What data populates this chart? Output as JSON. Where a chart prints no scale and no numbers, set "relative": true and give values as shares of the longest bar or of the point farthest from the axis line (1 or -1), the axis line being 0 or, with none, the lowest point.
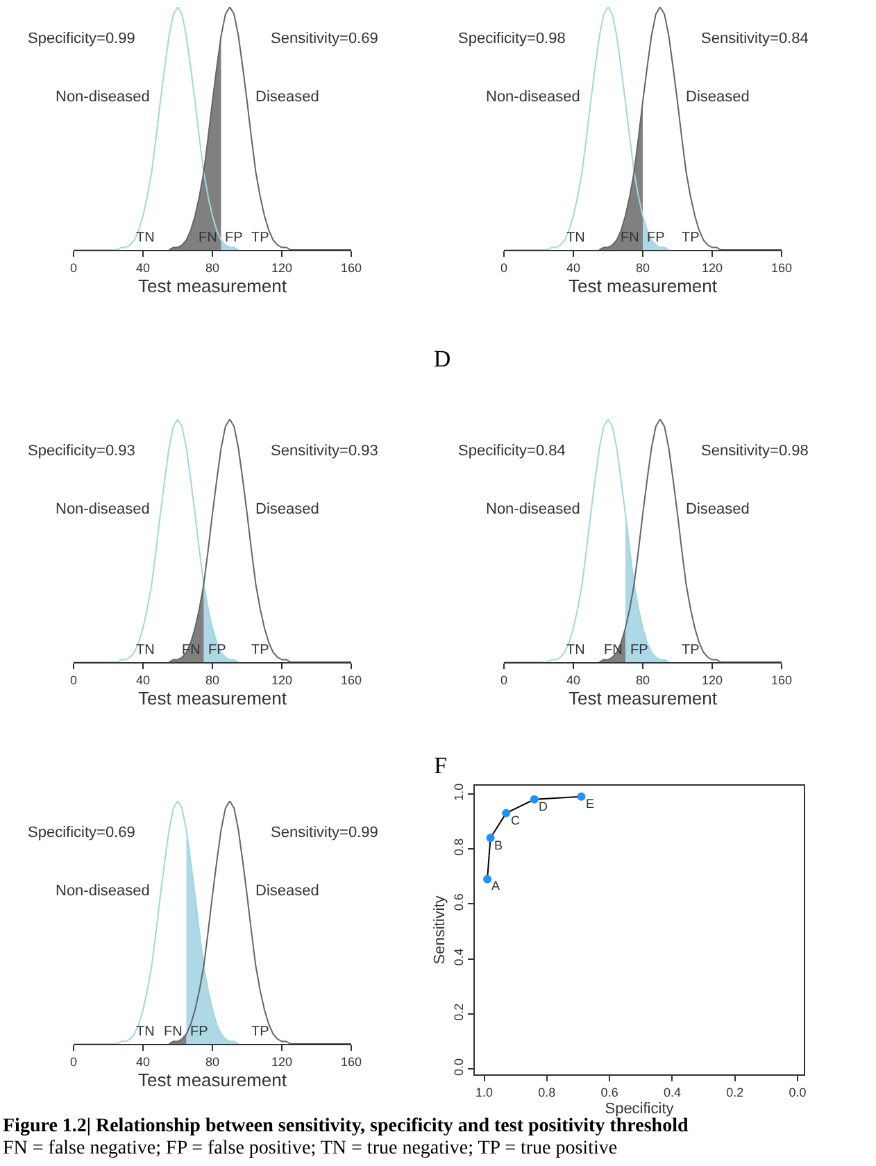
{
  "chart_data": [
    {
      "type": "line",
      "relative": true,
      "xlabel": "Test measurement",
      "xlim": [
        0,
        160
      ],
      "xticks": [
        0,
        40,
        80,
        120,
        160
      ],
      "x": [
        0,
        2.5,
        5,
        7.5,
        10,
        12.5,
        15,
        17.5,
        20,
        22.5,
        25,
        27.5,
        30,
        32.5,
        35,
        37.5,
        40,
        42.5,
        45,
        47.5,
        50,
        52.5,
        55,
        57.5,
        60,
        62.5,
        65,
        67.5,
        70,
        72.5,
        75,
        77.5,
        80,
        82.5,
        85,
        87.5,
        90,
        92.5,
        95,
        97.5,
        100,
        102.5,
        105,
        107.5,
        110,
        112.5,
        115,
        117.5,
        120,
        122.5,
        125,
        127.5,
        130,
        132.5,
        135,
        137.5,
        140,
        142.5,
        145,
        147.5,
        150,
        152.5,
        155,
        157.5,
        160
      ],
      "series": [
        {
          "name": "Non-diseased",
          "color": "#9fd8e0",
          "values": [
            0,
            0,
            0,
            0,
            0,
            0,
            0,
            0,
            0,
            0,
            0,
            0.01,
            0.01,
            0.02,
            0.04,
            0.08,
            0.14,
            0.22,
            0.32,
            0.46,
            0.61,
            0.75,
            0.88,
            0.97,
            1,
            0.97,
            0.88,
            0.75,
            0.61,
            0.46,
            0.32,
            0.22,
            0.14,
            0.08,
            0.04,
            0.02,
            0.01,
            0.01,
            0,
            null,
            null,
            null,
            null,
            null,
            null,
            null,
            null,
            null,
            null,
            null,
            null,
            null,
            null,
            null,
            null,
            null,
            null,
            null,
            null,
            null,
            null,
            null,
            null,
            null,
            null
          ]
        },
        {
          "name": "Diseased",
          "color": "#666666",
          "values": [
            null,
            null,
            null,
            null,
            null,
            null,
            null,
            null,
            null,
            null,
            null,
            null,
            null,
            null,
            null,
            null,
            null,
            null,
            null,
            null,
            null,
            null,
            0,
            0.01,
            0.01,
            0.02,
            0.04,
            0.08,
            0.14,
            0.22,
            0.32,
            0.46,
            0.61,
            0.75,
            0.88,
            0.97,
            1,
            0.97,
            0.88,
            0.75,
            0.61,
            0.46,
            0.32,
            0.22,
            0.14,
            0.08,
            0.04,
            0.02,
            0.01,
            0.01,
            0,
            0,
            0,
            0,
            0,
            0,
            0,
            0,
            0,
            0,
            0,
            0,
            0,
            0,
            0
          ]
        },
        {
          "type": "area",
          "name": "FP",
          "color": "#add8e6",
          "x": [
            85,
            87.5,
            90,
            92.5,
            95
          ],
          "values": [
            0.04,
            0.02,
            0.01,
            0.01,
            0
          ]
        },
        {
          "type": "area",
          "name": "FN",
          "color": "#808080",
          "x": [
            55,
            57.5,
            60,
            62.5,
            65,
            67.5,
            70,
            72.5,
            75,
            77.5,
            80,
            82.5,
            85
          ],
          "values": [
            0,
            0.01,
            0.01,
            0.02,
            0.04,
            0.08,
            0.14,
            0.22,
            0.32,
            0.46,
            0.61,
            0.75,
            0.88
          ]
        }
      ],
      "annotations": [
        "Specificity=0.99",
        "Sensitivity=0.69",
        "TN",
        "TP"
      ]
    },
    {
      "type": "line",
      "relative": true,
      "xlabel": "Test measurement",
      "xlim": [
        0,
        160
      ],
      "xticks": [
        0,
        40,
        80,
        120,
        160
      ],
      "x": [
        0,
        2.5,
        5,
        7.5,
        10,
        12.5,
        15,
        17.5,
        20,
        22.5,
        25,
        27.5,
        30,
        32.5,
        35,
        37.5,
        40,
        42.5,
        45,
        47.5,
        50,
        52.5,
        55,
        57.5,
        60,
        62.5,
        65,
        67.5,
        70,
        72.5,
        75,
        77.5,
        80,
        82.5,
        85,
        87.5,
        90,
        92.5,
        95,
        97.5,
        100,
        102.5,
        105,
        107.5,
        110,
        112.5,
        115,
        117.5,
        120,
        122.5,
        125,
        127.5,
        130,
        132.5,
        135,
        137.5,
        140,
        142.5,
        145,
        147.5,
        150,
        152.5,
        155,
        157.5,
        160
      ],
      "series": [
        {
          "name": "Non-diseased",
          "color": "#9fd8e0",
          "values": [
            0,
            0,
            0,
            0,
            0,
            0,
            0,
            0,
            0,
            0,
            0,
            0.01,
            0.01,
            0.02,
            0.04,
            0.08,
            0.14,
            0.22,
            0.32,
            0.46,
            0.61,
            0.75,
            0.88,
            0.97,
            1,
            0.97,
            0.88,
            0.75,
            0.61,
            0.46,
            0.32,
            0.22,
            0.14,
            0.08,
            0.04,
            0.02,
            0.01,
            0.01,
            0,
            null,
            null,
            null,
            null,
            null,
            null,
            null,
            null,
            null,
            null,
            null,
            null,
            null,
            null,
            null,
            null,
            null,
            null,
            null,
            null,
            null,
            null,
            null,
            null,
            null,
            null
          ]
        },
        {
          "name": "Diseased",
          "color": "#666666",
          "values": [
            null,
            null,
            null,
            null,
            null,
            null,
            null,
            null,
            null,
            null,
            null,
            null,
            null,
            null,
            null,
            null,
            null,
            null,
            null,
            null,
            null,
            null,
            0,
            0.01,
            0.01,
            0.02,
            0.04,
            0.08,
            0.14,
            0.22,
            0.32,
            0.46,
            0.61,
            0.75,
            0.88,
            0.97,
            1,
            0.97,
            0.88,
            0.75,
            0.61,
            0.46,
            0.32,
            0.22,
            0.14,
            0.08,
            0.04,
            0.02,
            0.01,
            0.01,
            0,
            0,
            0,
            0,
            0,
            0,
            0,
            0,
            0,
            0,
            0,
            0,
            0,
            0,
            0
          ]
        },
        {
          "type": "area",
          "name": "FP",
          "color": "#add8e6",
          "x": [
            80,
            82.5,
            85,
            87.5,
            90,
            92.5,
            95
          ],
          "values": [
            0.14,
            0.08,
            0.04,
            0.02,
            0.01,
            0.01,
            0
          ]
        },
        {
          "type": "area",
          "name": "FN",
          "color": "#808080",
          "x": [
            55,
            57.5,
            60,
            62.5,
            65,
            67.5,
            70,
            72.5,
            75,
            77.5,
            80
          ],
          "values": [
            0,
            0.01,
            0.01,
            0.02,
            0.04,
            0.08,
            0.14,
            0.22,
            0.32,
            0.46,
            0.61
          ]
        }
      ],
      "annotations": [
        "Specificity=0.98",
        "Sensitivity=0.84",
        "TN",
        "TP"
      ]
    },
    {
      "type": "line",
      "relative": true,
      "xlabel": "Test measurement",
      "xlim": [
        0,
        160
      ],
      "xticks": [
        0,
        40,
        80,
        120,
        160
      ],
      "x": [
        0,
        2.5,
        5,
        7.5,
        10,
        12.5,
        15,
        17.5,
        20,
        22.5,
        25,
        27.5,
        30,
        32.5,
        35,
        37.5,
        40,
        42.5,
        45,
        47.5,
        50,
        52.5,
        55,
        57.5,
        60,
        62.5,
        65,
        67.5,
        70,
        72.5,
        75,
        77.5,
        80,
        82.5,
        85,
        87.5,
        90,
        92.5,
        95,
        97.5,
        100,
        102.5,
        105,
        107.5,
        110,
        112.5,
        115,
        117.5,
        120,
        122.5,
        125,
        127.5,
        130,
        132.5,
        135,
        137.5,
        140,
        142.5,
        145,
        147.5,
        150,
        152.5,
        155,
        157.5,
        160
      ],
      "series": [
        {
          "name": "Non-diseased",
          "color": "#9fd8e0",
          "values": [
            0,
            0,
            0,
            0,
            0,
            0,
            0,
            0,
            0,
            0,
            0,
            0.01,
            0.01,
            0.02,
            0.04,
            0.08,
            0.14,
            0.22,
            0.32,
            0.46,
            0.61,
            0.75,
            0.88,
            0.97,
            1,
            0.97,
            0.88,
            0.75,
            0.61,
            0.46,
            0.32,
            0.22,
            0.14,
            0.08,
            0.04,
            0.02,
            0.01,
            0.01,
            0,
            null,
            null,
            null,
            null,
            null,
            null,
            null,
            null,
            null,
            null,
            null,
            null,
            null,
            null,
            null,
            null,
            null,
            null,
            null,
            null,
            null,
            null,
            null,
            null,
            null,
            null
          ]
        },
        {
          "name": "Diseased",
          "color": "#666666",
          "values": [
            null,
            null,
            null,
            null,
            null,
            null,
            null,
            null,
            null,
            null,
            null,
            null,
            null,
            null,
            null,
            null,
            null,
            null,
            null,
            null,
            null,
            null,
            0,
            0.01,
            0.01,
            0.02,
            0.04,
            0.08,
            0.14,
            0.22,
            0.32,
            0.46,
            0.61,
            0.75,
            0.88,
            0.97,
            1,
            0.97,
            0.88,
            0.75,
            0.61,
            0.46,
            0.32,
            0.22,
            0.14,
            0.08,
            0.04,
            0.02,
            0.01,
            0.01,
            0,
            0,
            0,
            0,
            0,
            0,
            0,
            0,
            0,
            0,
            0,
            0,
            0,
            0,
            0
          ]
        },
        {
          "type": "area",
          "name": "FP",
          "color": "#add8e6",
          "x": [
            75,
            77.5,
            80,
            82.5,
            85,
            87.5,
            90,
            92.5,
            95
          ],
          "values": [
            0.32,
            0.22,
            0.14,
            0.08,
            0.04,
            0.02,
            0.01,
            0.01,
            0
          ]
        },
        {
          "type": "area",
          "name": "FN",
          "color": "#808080",
          "x": [
            55,
            57.5,
            60,
            62.5,
            65,
            67.5,
            70,
            72.5,
            75
          ],
          "values": [
            0,
            0.01,
            0.01,
            0.02,
            0.04,
            0.08,
            0.14,
            0.22,
            0.32
          ]
        }
      ],
      "annotations": [
        "Specificity=0.93",
        "Sensitivity=0.93",
        "TN",
        "TP"
      ]
    },
    {
      "type": "line",
      "relative": true,
      "title": "D",
      "xlabel": "Test measurement",
      "xlim": [
        0,
        160
      ],
      "xticks": [
        0,
        40,
        80,
        120,
        160
      ],
      "x": [
        0,
        2.5,
        5,
        7.5,
        10,
        12.5,
        15,
        17.5,
        20,
        22.5,
        25,
        27.5,
        30,
        32.5,
        35,
        37.5,
        40,
        42.5,
        45,
        47.5,
        50,
        52.5,
        55,
        57.5,
        60,
        62.5,
        65,
        67.5,
        70,
        72.5,
        75,
        77.5,
        80,
        82.5,
        85,
        87.5,
        90,
        92.5,
        95,
        97.5,
        100,
        102.5,
        105,
        107.5,
        110,
        112.5,
        115,
        117.5,
        120,
        122.5,
        125,
        127.5,
        130,
        132.5,
        135,
        137.5,
        140,
        142.5,
        145,
        147.5,
        150,
        152.5,
        155,
        157.5,
        160
      ],
      "series": [
        {
          "name": "Non-diseased",
          "color": "#9fd8e0",
          "values": [
            0,
            0,
            0,
            0,
            0,
            0,
            0,
            0,
            0,
            0,
            0,
            0.01,
            0.01,
            0.02,
            0.04,
            0.08,
            0.14,
            0.22,
            0.32,
            0.46,
            0.61,
            0.75,
            0.88,
            0.97,
            1,
            0.97,
            0.88,
            0.75,
            0.61,
            0.46,
            0.32,
            0.22,
            0.14,
            0.08,
            0.04,
            0.02,
            0.01,
            0.01,
            0,
            null,
            null,
            null,
            null,
            null,
            null,
            null,
            null,
            null,
            null,
            null,
            null,
            null,
            null,
            null,
            null,
            null,
            null,
            null,
            null,
            null,
            null,
            null,
            null,
            null,
            null
          ]
        },
        {
          "name": "Diseased",
          "color": "#666666",
          "values": [
            null,
            null,
            null,
            null,
            null,
            null,
            null,
            null,
            null,
            null,
            null,
            null,
            null,
            null,
            null,
            null,
            null,
            null,
            null,
            null,
            null,
            null,
            0,
            0.01,
            0.01,
            0.02,
            0.04,
            0.08,
            0.14,
            0.22,
            0.32,
            0.46,
            0.61,
            0.75,
            0.88,
            0.97,
            1,
            0.97,
            0.88,
            0.75,
            0.61,
            0.46,
            0.32,
            0.22,
            0.14,
            0.08,
            0.04,
            0.02,
            0.01,
            0.01,
            0,
            0,
            0,
            0,
            0,
            0,
            0,
            0,
            0,
            0,
            0,
            0,
            0,
            0,
            0
          ]
        },
        {
          "type": "area",
          "name": "FP",
          "color": "#add8e6",
          "x": [
            70,
            72.5,
            75,
            77.5,
            80,
            82.5,
            85,
            87.5,
            90,
            92.5,
            95
          ],
          "values": [
            0.61,
            0.46,
            0.32,
            0.22,
            0.14,
            0.08,
            0.04,
            0.02,
            0.01,
            0.01,
            0
          ]
        },
        {
          "type": "area",
          "name": "FN",
          "color": "#808080",
          "x": [
            55,
            57.5,
            60,
            62.5,
            65,
            67.5,
            70
          ],
          "values": [
            0,
            0.01,
            0.01,
            0.02,
            0.04,
            0.08,
            0.14
          ]
        }
      ],
      "annotations": [
        "Specificity=0.84",
        "Sensitivity=0.98",
        "TN",
        "TP"
      ]
    },
    {
      "type": "line",
      "relative": true,
      "xlabel": "Test measurement",
      "xlim": [
        0,
        160
      ],
      "xticks": [
        0,
        40,
        80,
        120,
        160
      ],
      "x": [
        0,
        2.5,
        5,
        7.5,
        10,
        12.5,
        15,
        17.5,
        20,
        22.5,
        25,
        27.5,
        30,
        32.5,
        35,
        37.5,
        40,
        42.5,
        45,
        47.5,
        50,
        52.5,
        55,
        57.5,
        60,
        62.5,
        65,
        67.5,
        70,
        72.5,
        75,
        77.5,
        80,
        82.5,
        85,
        87.5,
        90,
        92.5,
        95,
        97.5,
        100,
        102.5,
        105,
        107.5,
        110,
        112.5,
        115,
        117.5,
        120,
        122.5,
        125,
        127.5,
        130,
        132.5,
        135,
        137.5,
        140,
        142.5,
        145,
        147.5,
        150,
        152.5,
        155,
        157.5,
        160
      ],
      "series": [
        {
          "name": "Non-diseased",
          "color": "#9fd8e0",
          "values": [
            0,
            0,
            0,
            0,
            0,
            0,
            0,
            0,
            0,
            0,
            0,
            0.01,
            0.01,
            0.02,
            0.04,
            0.08,
            0.14,
            0.22,
            0.32,
            0.46,
            0.61,
            0.75,
            0.88,
            0.97,
            1,
            0.97,
            0.88,
            0.75,
            0.61,
            0.46,
            0.32,
            0.22,
            0.14,
            0.08,
            0.04,
            0.02,
            0.01,
            0.01,
            0,
            null,
            null,
            null,
            null,
            null,
            null,
            null,
            null,
            null,
            null,
            null,
            null,
            null,
            null,
            null,
            null,
            null,
            null,
            null,
            null,
            null,
            null,
            null,
            null,
            null,
            null
          ]
        },
        {
          "name": "Diseased",
          "color": "#666666",
          "values": [
            null,
            null,
            null,
            null,
            null,
            null,
            null,
            null,
            null,
            null,
            null,
            null,
            null,
            null,
            null,
            null,
            null,
            null,
            null,
            null,
            null,
            null,
            0,
            0.01,
            0.01,
            0.02,
            0.04,
            0.08,
            0.14,
            0.22,
            0.32,
            0.46,
            0.61,
            0.75,
            0.88,
            0.97,
            1,
            0.97,
            0.88,
            0.75,
            0.61,
            0.46,
            0.32,
            0.22,
            0.14,
            0.08,
            0.04,
            0.02,
            0.01,
            0.01,
            0,
            0,
            0,
            0,
            0,
            0,
            0,
            0,
            0,
            0,
            0,
            0,
            0,
            0,
            0
          ]
        },
        {
          "type": "area",
          "name": "FP",
          "color": "#add8e6",
          "x": [
            65,
            67.5,
            70,
            72.5,
            75,
            77.5,
            80,
            82.5,
            85,
            87.5,
            90,
            92.5,
            95
          ],
          "values": [
            0.88,
            0.75,
            0.61,
            0.46,
            0.32,
            0.22,
            0.14,
            0.08,
            0.04,
            0.02,
            0.01,
            0.01,
            0
          ]
        },
        {
          "type": "area",
          "name": "FN",
          "color": "#808080",
          "x": [
            55,
            57.5,
            60,
            62.5,
            65
          ],
          "values": [
            0,
            0.01,
            0.01,
            0.02,
            0.04
          ]
        }
      ],
      "annotations": [
        "Specificity=0.69",
        "Sensitivity=0.99",
        "TN",
        "TP"
      ]
    },
    {
      "type": "line",
      "title": "F",
      "xlabel": "Specificity",
      "ylabel": "Sensitivity",
      "marker": "circle",
      "xlim": [
        1.03,
        -0.02
      ],
      "xticks": [
        {
          "value": 1,
          "label": "1.0"
        },
        {
          "value": 0.8,
          "label": "0.8"
        },
        {
          "value": 0.6,
          "label": "0.6"
        },
        {
          "value": 0.4,
          "label": "0.4"
        },
        {
          "value": 0.2,
          "label": "0.2"
        },
        {
          "value": 0,
          "label": "0.0"
        }
      ],
      "ylim": [
        -0.02,
        1.03
      ],
      "yticks": [
        {
          "value": 0,
          "label": "0.0"
        },
        {
          "value": 0.2,
          "label": "0.2"
        },
        {
          "value": 0.4,
          "label": "0.4"
        },
        {
          "value": 0.6,
          "label": "0.6"
        },
        {
          "value": 0.8,
          "label": "0.8"
        },
        {
          "value": 1,
          "label": "1.0"
        }
      ],
      "series": [
        {
          "type": "line",
          "marker": "none",
          "color": "#000000",
          "x": [
            0.99,
            0.98,
            0.93,
            0.84,
            0.69
          ],
          "values": [
            0.69,
            0.84,
            0.93,
            0.98,
            0.99
          ]
        },
        {
          "type": "scatter",
          "color": "#1e90ff",
          "x": [
            0.99,
            0.98,
            0.93,
            0.84,
            0.69
          ],
          "values": [
            0.69,
            0.84,
            0.93,
            0.98,
            0.99
          ]
        }
      ],
      "annotations": [
        {
          "text": "A",
          "x": 0.99,
          "y": 0.69
        },
        {
          "text": "B",
          "x": 0.98,
          "y": 0.84
        },
        {
          "text": "C",
          "x": 0.93,
          "y": 0.93
        },
        {
          "text": "D",
          "x": 0.84,
          "y": 0.98
        },
        {
          "text": "E",
          "x": 0.69,
          "y": 0.99
        }
      ]
    },
    {
      "type": "other",
      "title": "Figure 1.2| Relationship between sensitivity, specificity and test positivity threshold",
      "annotations": [
        "FN = false negative; FP = false positive; TN = true negative; TP = true positive"
      ]
    }
  ]
}
